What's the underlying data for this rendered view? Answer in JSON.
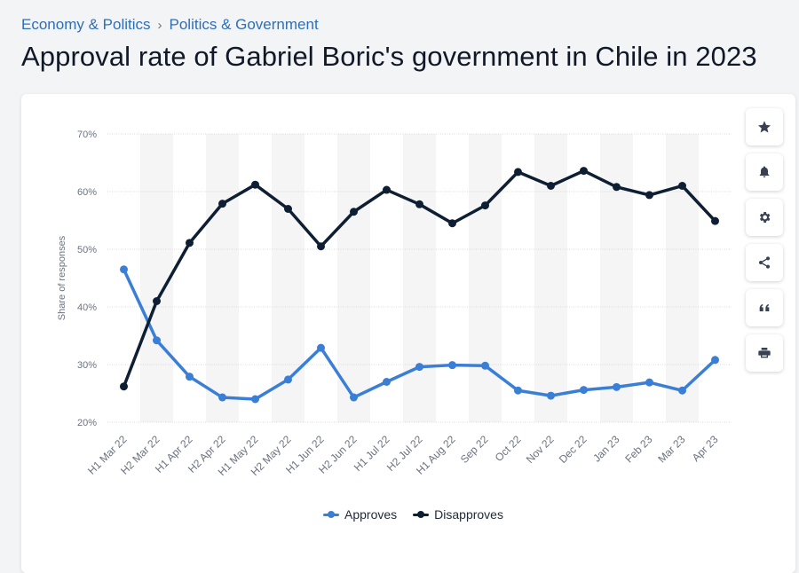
{
  "breadcrumb": {
    "items": [
      "Economy & Politics",
      "Politics & Government"
    ],
    "separator": "›"
  },
  "page_title": "Approval rate of Gabriel Boric's government in Chile in 2023",
  "toolbar": {
    "buttons": [
      "star-icon",
      "bell-icon",
      "gear-icon",
      "share-icon",
      "quote-icon",
      "print-icon"
    ]
  },
  "chart_data": {
    "type": "line",
    "x": [
      "H1 Mar 22",
      "H2 Mar 22",
      "H1 Apr 22",
      "H2 Apr 22",
      "H1 May 22",
      "H2 May 22",
      "H1 Jun 22",
      "H2 Jun 22",
      "H1 Jul 22",
      "H2 Jul 22",
      "H1 Aug 22",
      "Sep 22",
      "Oct 22",
      "Nov 22",
      "Dec 22",
      "Jan 23",
      "Feb 23",
      "Mar 23",
      "Apr 23"
    ],
    "series": [
      {
        "name": "Approves",
        "color": "#3a7fd5",
        "values": [
          46.5,
          34.2,
          27.9,
          24.3,
          24.0,
          27.4,
          32.9,
          24.3,
          27.0,
          29.6,
          29.9,
          29.8,
          25.5,
          24.6,
          25.6,
          26.1,
          26.9,
          25.5,
          30.8
        ]
      },
      {
        "name": "Disapproves",
        "color": "#0f1f33",
        "values": [
          26.2,
          41.0,
          51.1,
          57.9,
          61.2,
          57.0,
          50.5,
          56.5,
          60.3,
          57.8,
          54.5,
          57.6,
          63.4,
          61.0,
          63.6,
          60.8,
          59.4,
          61.0,
          54.9
        ]
      }
    ],
    "ylabel": "Share of responses",
    "ylim": [
      20,
      70
    ],
    "yticks": [
      20,
      30,
      40,
      50,
      60,
      70
    ],
    "ytick_labels": [
      "20%",
      "30%",
      "40%",
      "50%",
      "60%",
      "70%"
    ],
    "grid": true,
    "legend": "bottom-center"
  }
}
